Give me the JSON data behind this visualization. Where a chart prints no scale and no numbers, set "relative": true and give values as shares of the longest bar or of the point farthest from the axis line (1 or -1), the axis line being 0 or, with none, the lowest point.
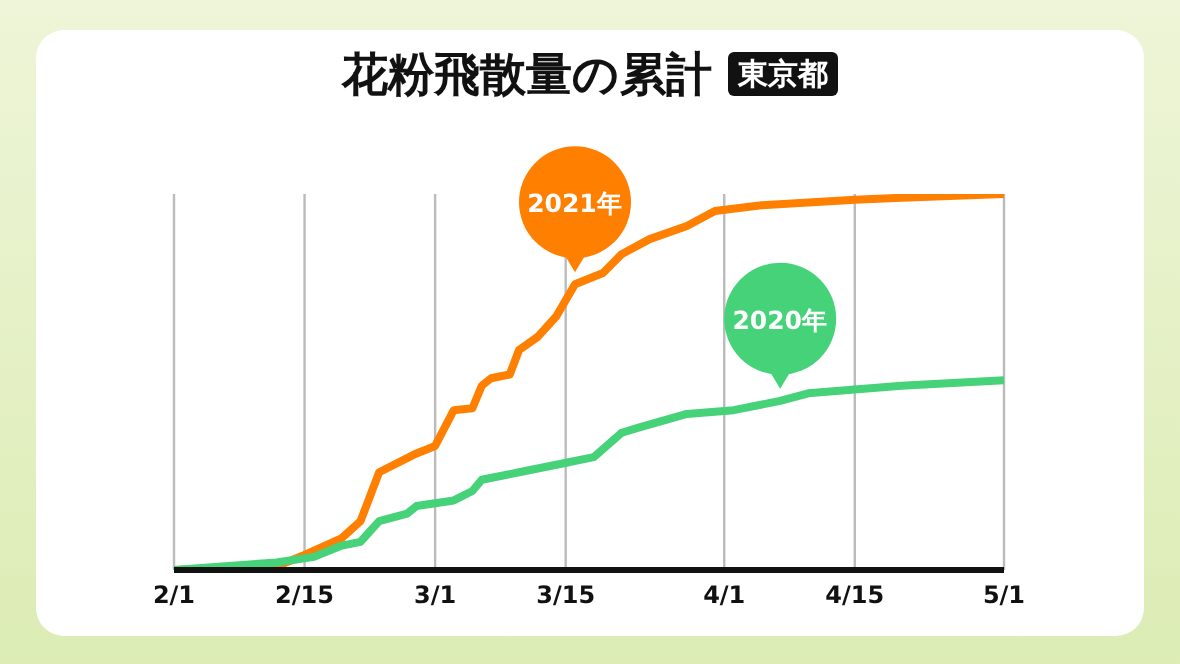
{
  "chart_data": {
    "type": "line",
    "title": "花粉飛散量の累計",
    "subtitle": "東京都",
    "relative": true,
    "grid": "x",
    "marker": "none",
    "legend": false,
    "xlim": [
      "--02-01",
      "--05-01"
    ],
    "xticks": [
      {
        "value": "--02-01",
        "label": "2/1"
      },
      {
        "value": "--02-15",
        "label": "2/15"
      },
      {
        "value": "--03-01",
        "label": "3/1"
      },
      {
        "value": "--03-15",
        "label": "3/15"
      },
      {
        "value": "--04-01",
        "label": "4/1"
      },
      {
        "value": "--04-15",
        "label": "4/15"
      },
      {
        "value": "--05-01",
        "label": "5/1"
      }
    ],
    "series": [
      {
        "name": "2021年",
        "color": "#ff7f00",
        "x": [
          "--02-01",
          "--02-12",
          "--02-15",
          "--02-19",
          "--02-21",
          "--02-23",
          "--02-27",
          "--03-01",
          "--03-03",
          "--03-05",
          "--03-06",
          "--03-07",
          "--03-09",
          "--03-10",
          "--03-12",
          "--03-14",
          "--03-16",
          "--03-19",
          "--03-21",
          "--03-24",
          "--03-28",
          "--03-31",
          "--04-05",
          "--04-15",
          "--04-20",
          "--05-01"
        ],
        "values": [
          0,
          0.01,
          0.04,
          0.085,
          0.13,
          0.26,
          0.31,
          0.33,
          0.425,
          0.43,
          0.49,
          0.51,
          0.52,
          0.585,
          0.62,
          0.675,
          0.76,
          0.79,
          0.84,
          0.88,
          0.915,
          0.955,
          0.97,
          0.985,
          0.99,
          1
        ]
      },
      {
        "name": "2020年",
        "color": "#46d278",
        "x": [
          "--02-01",
          "--02-12",
          "--02-16",
          "--02-19",
          "--02-21",
          "--02-23",
          "--02-26",
          "--02-27",
          "--03-03",
          "--03-05",
          "--03-06",
          "--03-10",
          "--03-14",
          "--03-18",
          "--03-21",
          "--03-23",
          "--03-28",
          "--04-02",
          "--04-07",
          "--04-10",
          "--04-20",
          "--05-01"
        ],
        "values": [
          0,
          0.02,
          0.035,
          0.065,
          0.075,
          0.13,
          0.15,
          0.17,
          0.185,
          0.21,
          0.24,
          0.26,
          0.28,
          0.3,
          0.365,
          0.38,
          0.415,
          0.425,
          0.45,
          0.47,
          0.49,
          0.505
        ]
      }
    ]
  }
}
